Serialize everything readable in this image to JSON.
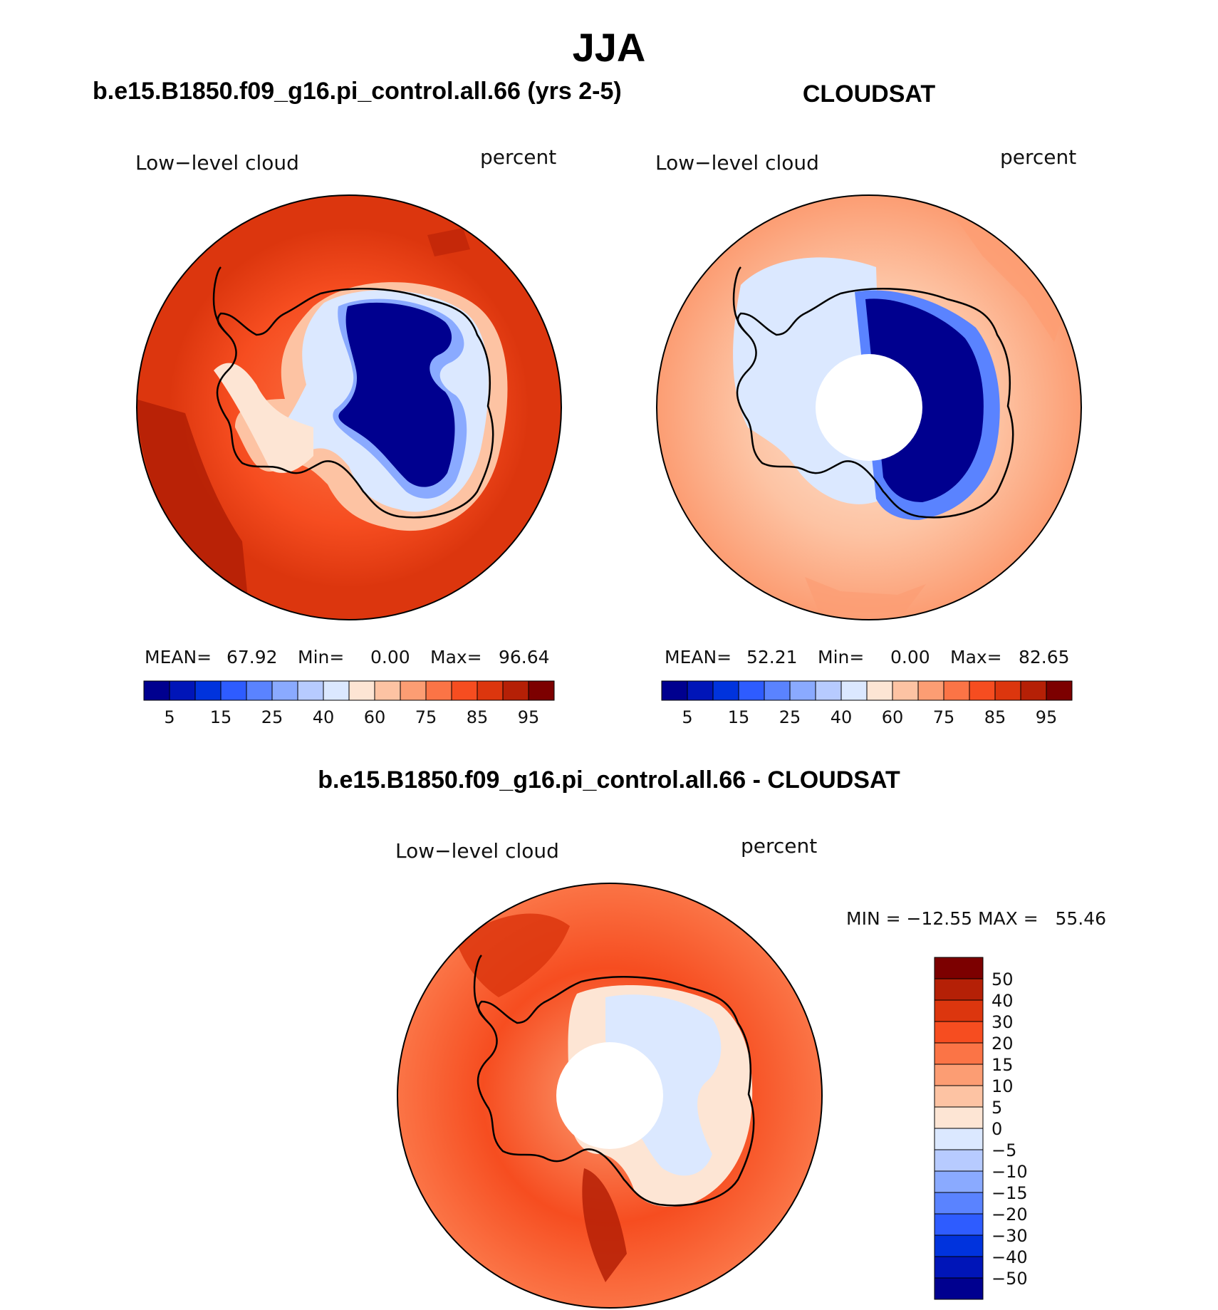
{
  "figure": {
    "title": "JJA"
  },
  "panels": {
    "model": {
      "title": "b.e15.B1850.f09_g16.pi_control.all.66 (yrs 2-5)",
      "left_label": "Low−level cloud",
      "right_label": "percent",
      "stats": {
        "mean_label": "MEAN=",
        "mean": "67.92",
        "min_label": "Min=",
        "min": "0.00",
        "max_label": "Max=",
        "max": "96.64"
      }
    },
    "obs": {
      "title": "CLOUDSAT",
      "left_label": "Low−level cloud",
      "right_label": "percent",
      "stats": {
        "mean_label": "MEAN=",
        "mean": "52.21",
        "min_label": "Min=",
        "min": "0.00",
        "max_label": "Max=",
        "max": "82.65"
      }
    },
    "diff": {
      "title": "b.e15.B1850.f09_g16.pi_control.all.66 - CLOUDSAT",
      "left_label": "Low−level cloud",
      "right_label": "percent",
      "minmax": "MIN = −12.55 MAX =   55.46"
    }
  },
  "chart_data": [
    {
      "type": "heatmap",
      "projection": "south-polar stereographic",
      "title": "b.e15.B1850.f09_g16.pi_control.all.66 (yrs 2-5)",
      "variable": "Low-level cloud",
      "units": "percent",
      "stats": {
        "mean": 67.92,
        "min": 0.0,
        "max": 96.64
      },
      "colorbar_ticks": [
        "5",
        "15",
        "25",
        "40",
        "60",
        "75",
        "85",
        "95"
      ],
      "colors": [
        "#00008f",
        "#0015b8",
        "#0033dd",
        "#2e5cff",
        "#5a83ff",
        "#8aaaff",
        "#b7cbff",
        "#dbe8ff",
        "#fde5d4",
        "#fdc3a3",
        "#fc9d73",
        "#fb7446",
        "#f64d20",
        "#dc360e",
        "#b52006",
        "#7c0000"
      ]
    },
    {
      "type": "heatmap",
      "projection": "south-polar stereographic",
      "title": "CLOUDSAT",
      "variable": "Low-level cloud",
      "units": "percent",
      "stats": {
        "mean": 52.21,
        "min": 0.0,
        "max": 82.65
      },
      "colorbar_ticks": [
        "5",
        "15",
        "25",
        "40",
        "60",
        "75",
        "85",
        "95"
      ],
      "colors": [
        "#00008f",
        "#0015b8",
        "#0033dd",
        "#2e5cff",
        "#5a83ff",
        "#8aaaff",
        "#b7cbff",
        "#dbe8ff",
        "#fde5d4",
        "#fdc3a3",
        "#fc9d73",
        "#fb7446",
        "#f64d20",
        "#dc360e",
        "#b52006",
        "#7c0000"
      ]
    },
    {
      "type": "heatmap",
      "projection": "south-polar stereographic",
      "title": "b.e15.B1850.f09_g16.pi_control.all.66 - CLOUDSAT",
      "variable": "Low-level cloud",
      "units": "percent",
      "stats": {
        "min": -12.55,
        "max": 55.46
      },
      "colorbar_ticks": [
        "50",
        "40",
        "30",
        "20",
        "15",
        "10",
        "5",
        "0",
        "−5",
        "−10",
        "−15",
        "−20",
        "−30",
        "−40",
        "−50"
      ],
      "colors": [
        "#7c0000",
        "#b52006",
        "#dc360e",
        "#f64d20",
        "#fb7446",
        "#fc9d73",
        "#fdc3a3",
        "#fde5d4",
        "#dbe8ff",
        "#b7cbff",
        "#8aaaff",
        "#5a83ff",
        "#2e5cff",
        "#0033dd",
        "#0015b8",
        "#00008f"
      ]
    }
  ]
}
